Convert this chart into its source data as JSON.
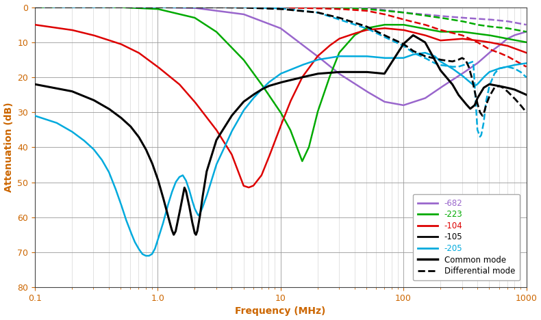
{
  "xlabel": "Frequency (MHz)",
  "ylabel": "Attenuation (dB)",
  "xlim_log": [
    0.1,
    1000
  ],
  "ylim": [
    80,
    0
  ],
  "yticks": [
    0,
    10,
    20,
    30,
    40,
    50,
    60,
    70,
    80
  ],
  "colors": {
    "682": "#9966cc",
    "223": "#00aa00",
    "104": "#dd0000",
    "105": "#000000",
    "205": "#00aadd"
  },
  "legend_labels": [
    "-682",
    "-223",
    "-104",
    "-105",
    "-205"
  ],
  "legend_colors": [
    "#9966cc",
    "#00aa00",
    "#dd0000",
    "#000000",
    "#00aadd"
  ],
  "background_color": "#ffffff",
  "grid_major_color": "#999999",
  "grid_minor_color": "#cccccc",
  "axis_label_color": "#cc6600",
  "tick_color": "#cc6600"
}
